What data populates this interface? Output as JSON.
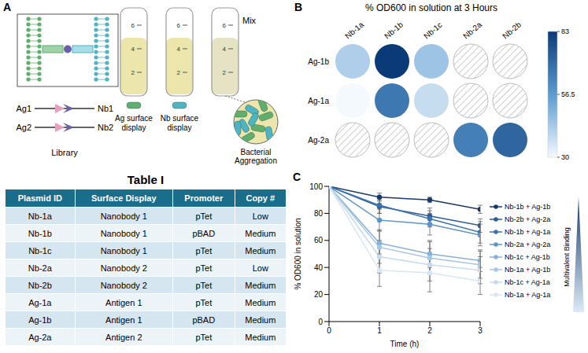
{
  "panel_a": {
    "letter": "A",
    "library_label": "Library",
    "pairs": [
      [
        "Ag1",
        "Nb1"
      ],
      [
        "Ag2",
        "Nb2"
      ]
    ],
    "tubes": [
      {
        "label": "Ag surface display",
        "color": "#5fae6e"
      },
      {
        "label": "Nb surface display",
        "color": "#4fb3c4"
      },
      {
        "label": "Mix",
        "color": null
      }
    ],
    "tube_scale": [
      6,
      4,
      2
    ],
    "inset_label": "Bacterial Aggregation"
  },
  "table": {
    "title": "Table I",
    "header": [
      "Plasmid ID",
      "Surface Display",
      "Promoter",
      "Copy #"
    ],
    "rows": [
      [
        "Nb-1a",
        "Nanobody 1",
        "pTet",
        "Low"
      ],
      [
        "Nb-1b",
        "Nanobody 1",
        "pBAD",
        "Medium"
      ],
      [
        "Nb-1c",
        "Nanobody 1",
        "pTet",
        "Medium"
      ],
      [
        "Nb-2a",
        "Nanobody 2",
        "pTet",
        "Low"
      ],
      [
        "Nb-2b",
        "Nanobody 2",
        "pTet",
        "Medium"
      ],
      [
        "Ag-1a",
        "Antigen 1",
        "pTet",
        "Medium"
      ],
      [
        "Ag-1b",
        "Antigen 1",
        "pBAD",
        "Medium"
      ],
      [
        "Ag-2a",
        "Antigen 2",
        "pTet",
        "Medium"
      ]
    ]
  },
  "chart_data": [
    {
      "type": "heatmap",
      "panel": "B",
      "title": "% OD600 in solution at 3 Hours",
      "x_categories": [
        "Nb-1a",
        "Nb-1b",
        "Nb-1c",
        "Nb-2a",
        "Nb-2b"
      ],
      "y_categories": [
        "Ag-1b",
        "Ag-1a",
        "Ag-2a"
      ],
      "cells": [
        [
          42,
          83,
          45,
          null,
          null
        ],
        [
          30,
          66,
          38,
          null,
          null
        ],
        [
          null,
          null,
          null,
          64,
          71
        ]
      ],
      "colorbar": {
        "range": [
          30,
          83
        ],
        "ticks": [
          30,
          56.5,
          83
        ]
      }
    },
    {
      "type": "line",
      "panel": "C",
      "x_label": "Time (h)",
      "y_label": "% OD600 in solution",
      "x": [
        0,
        1,
        2,
        3
      ],
      "xlim": [
        0,
        3
      ],
      "xticks": [
        0,
        1,
        2,
        3
      ],
      "ylim": [
        0,
        100
      ],
      "yticks": [
        0,
        20,
        40,
        60,
        80,
        100
      ],
      "grid": false,
      "legend": "right",
      "marker": "circle",
      "annotation": "Multivalent Binding",
      "series": [
        {
          "name": "Nb-1b + Ag-1b",
          "color": "#163a6b",
          "values": [
            100,
            92,
            90,
            83
          ],
          "errors": [
            0,
            3,
            2,
            3
          ]
        },
        {
          "name": "Nb-2b + Ag-2a",
          "color": "#2d5d94",
          "values": [
            100,
            85,
            78,
            71
          ],
          "errors": [
            0,
            5,
            6,
            5
          ]
        },
        {
          "name": "Nb-1b + Ag-1a",
          "color": "#3a73ad",
          "values": [
            100,
            86,
            76,
            66
          ],
          "errors": [
            0,
            6,
            6,
            8
          ]
        },
        {
          "name": "Nb-2a + Ag-2a",
          "color": "#5e95c8",
          "values": [
            100,
            75,
            72,
            64
          ],
          "errors": [
            0,
            8,
            8,
            8
          ]
        },
        {
          "name": "Nb-1c + Ag-1b",
          "color": "#86b1d8",
          "values": [
            100,
            58,
            50,
            45
          ],
          "errors": [
            0,
            10,
            10,
            8
          ]
        },
        {
          "name": "Nb-1a + Ag-1b",
          "color": "#a7c6e3",
          "values": [
            100,
            55,
            47,
            42
          ],
          "errors": [
            0,
            12,
            12,
            10
          ]
        },
        {
          "name": "Nb-1c + Ag-1a",
          "color": "#c6dbee",
          "values": [
            100,
            48,
            42,
            38
          ],
          "errors": [
            0,
            12,
            12,
            10
          ]
        },
        {
          "name": "Nb-1a + Ag-1a",
          "color": "#d8e6f3",
          "values": [
            100,
            38,
            36,
            30
          ],
          "errors": [
            0,
            12,
            14,
            10
          ]
        }
      ]
    }
  ]
}
